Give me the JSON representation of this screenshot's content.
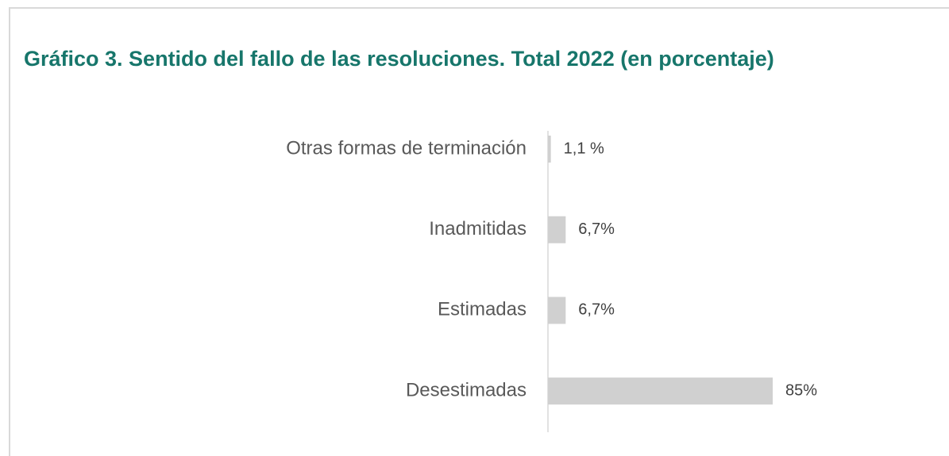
{
  "chart_data": {
    "type": "hbar",
    "title": "Gráfico 3. Sentido del fallo de las resoluciones. Total 2022 (en porcentaje)",
    "categories": [
      "Otras formas de terminación",
      "Inadmitidas",
      "Estimadas",
      "Desestimadas"
    ],
    "values": [
      1.1,
      6.7,
      6.7,
      85
    ],
    "value_labels": [
      "1,1 %",
      "6,7%",
      "6,7%",
      "85%"
    ],
    "color": "#d0d0d0"
  }
}
